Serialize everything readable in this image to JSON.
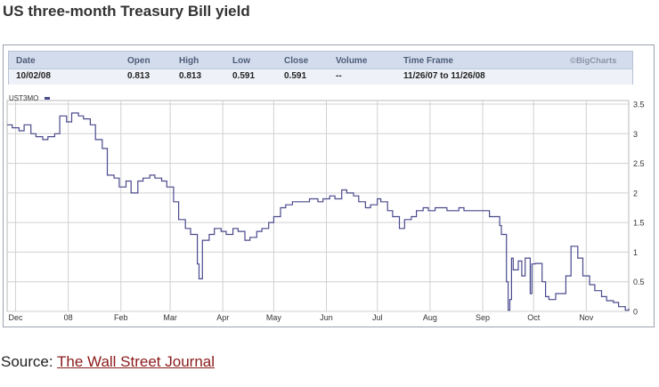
{
  "title": "US three-month Treasury Bill yield",
  "info": {
    "headers": {
      "date": "Date",
      "open": "Open",
      "high": "High",
      "low": "Low",
      "close": "Close",
      "volume": "Volume",
      "timeframe": "Time Frame"
    },
    "values": {
      "date": "10/02/08",
      "open": "0.813",
      "high": "0.813",
      "low": "0.591",
      "close": "0.591",
      "volume": "--",
      "timeframe": "11/26/07 to 11/26/08"
    },
    "copyright": "©BigCharts"
  },
  "source": {
    "prefix": "Source: ",
    "link": "The Wall Street Journal"
  },
  "colors": {
    "line": "#4a4a8e",
    "grid": "#d0d0d0",
    "header_bg": "#d3dcec",
    "link": "#8b1a1a"
  },
  "chart_data": {
    "type": "line",
    "title": "",
    "xlabel": "",
    "ylabel": "",
    "legend": [
      "UST3MO"
    ],
    "ylim": [
      0,
      3.5
    ],
    "y_ticks": [
      0,
      0.5,
      1,
      1.5,
      2,
      2.5,
      3,
      3.5
    ],
    "y_tick_labels": [
      "0",
      "0.5",
      "1",
      "1.5",
      "2",
      "2.5",
      "3",
      "3.5"
    ],
    "x_tick_labels": [
      "Dec",
      "08",
      "Feb",
      "Mar",
      "Apr",
      "May",
      "Jun",
      "Jul",
      "Aug",
      "Sep",
      "Oct",
      "Nov"
    ],
    "x_tick_dates": [
      "2007-12-01",
      "2008-01-01",
      "2008-02-01",
      "2008-03-01",
      "2008-04-01",
      "2008-05-01",
      "2008-06-01",
      "2008-07-01",
      "2008-08-01",
      "2008-09-01",
      "2008-10-01",
      "2008-11-01"
    ],
    "x_range": [
      "2007-11-26",
      "2008-11-26"
    ],
    "grid": true,
    "series": [
      {
        "name": "UST3MO",
        "x": [
          "2007-11-26",
          "2007-11-29",
          "2007-12-03",
          "2007-12-06",
          "2007-12-10",
          "2007-12-13",
          "2007-12-17",
          "2007-12-20",
          "2007-12-24",
          "2007-12-27",
          "2007-12-31",
          "2008-01-03",
          "2008-01-07",
          "2008-01-10",
          "2008-01-14",
          "2008-01-17",
          "2008-01-21",
          "2008-01-24",
          "2008-01-28",
          "2008-01-31",
          "2008-02-04",
          "2008-02-07",
          "2008-02-11",
          "2008-02-14",
          "2008-02-18",
          "2008-02-21",
          "2008-02-25",
          "2008-02-28",
          "2008-03-03",
          "2008-03-06",
          "2008-03-10",
          "2008-03-13",
          "2008-03-17",
          "2008-03-18",
          "2008-03-20",
          "2008-03-24",
          "2008-03-27",
          "2008-03-31",
          "2008-04-03",
          "2008-04-07",
          "2008-04-10",
          "2008-04-14",
          "2008-04-17",
          "2008-04-21",
          "2008-04-24",
          "2008-04-28",
          "2008-05-01",
          "2008-05-05",
          "2008-05-08",
          "2008-05-12",
          "2008-05-15",
          "2008-05-19",
          "2008-05-22",
          "2008-05-27",
          "2008-05-30",
          "2008-06-03",
          "2008-06-06",
          "2008-06-10",
          "2008-06-13",
          "2008-06-17",
          "2008-06-20",
          "2008-06-24",
          "2008-06-27",
          "2008-07-01",
          "2008-07-03",
          "2008-07-07",
          "2008-07-10",
          "2008-07-14",
          "2008-07-17",
          "2008-07-21",
          "2008-07-24",
          "2008-07-28",
          "2008-07-31",
          "2008-08-04",
          "2008-08-07",
          "2008-08-11",
          "2008-08-14",
          "2008-08-18",
          "2008-08-21",
          "2008-08-25",
          "2008-08-28",
          "2008-09-02",
          "2008-09-05",
          "2008-09-09",
          "2008-09-11",
          "2008-09-12",
          "2008-09-15",
          "2008-09-16",
          "2008-09-17",
          "2008-09-18",
          "2008-09-19",
          "2008-09-22",
          "2008-09-24",
          "2008-09-26",
          "2008-09-29",
          "2008-09-30",
          "2008-10-02",
          "2008-10-06",
          "2008-10-08",
          "2008-10-10",
          "2008-10-14",
          "2008-10-16",
          "2008-10-20",
          "2008-10-23",
          "2008-10-27",
          "2008-10-30",
          "2008-11-03",
          "2008-11-06",
          "2008-11-10",
          "2008-11-13",
          "2008-11-17",
          "2008-11-20",
          "2008-11-24",
          "2008-11-26"
        ],
        "values": [
          3.15,
          3.1,
          3.05,
          3.15,
          3.0,
          2.95,
          2.9,
          2.95,
          3.0,
          3.3,
          3.2,
          3.35,
          3.3,
          3.25,
          3.15,
          2.9,
          2.75,
          2.3,
          2.25,
          2.1,
          2.2,
          2.0,
          2.2,
          2.25,
          2.3,
          2.25,
          2.2,
          2.1,
          1.85,
          1.55,
          1.4,
          1.3,
          0.8,
          0.55,
          1.2,
          1.3,
          1.4,
          1.35,
          1.3,
          1.4,
          1.35,
          1.2,
          1.25,
          1.35,
          1.4,
          1.5,
          1.6,
          1.75,
          1.8,
          1.85,
          1.85,
          1.85,
          1.9,
          1.85,
          1.9,
          1.95,
          1.9,
          2.05,
          2.0,
          1.95,
          1.85,
          1.75,
          1.8,
          1.9,
          1.85,
          1.7,
          1.6,
          1.4,
          1.55,
          1.6,
          1.7,
          1.75,
          1.7,
          1.75,
          1.75,
          1.7,
          1.7,
          1.75,
          1.7,
          1.7,
          1.7,
          1.7,
          1.6,
          1.6,
          1.45,
          1.3,
          0.5,
          0.02,
          0.2,
          0.9,
          0.7,
          0.85,
          0.6,
          0.9,
          0.3,
          0.8,
          0.81,
          0.5,
          0.25,
          0.2,
          0.3,
          0.3,
          0.6,
          1.1,
          0.9,
          0.6,
          0.45,
          0.35,
          0.25,
          0.18,
          0.15,
          0.08,
          0.02,
          0.05
        ]
      }
    ]
  }
}
